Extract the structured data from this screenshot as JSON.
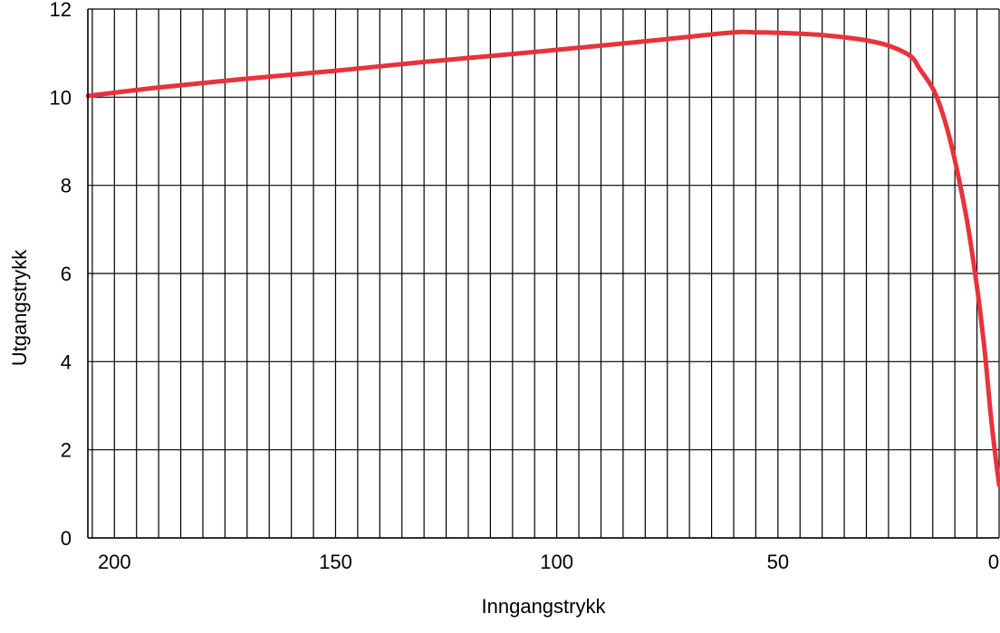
{
  "chart_data": {
    "type": "line",
    "title": "",
    "xlabel": "Inngangstrykk",
    "ylabel": "Utgangstrykk",
    "x_reversed": true,
    "xlim": [
      206,
      0
    ],
    "ylim": [
      0,
      12
    ],
    "x_ticks": [
      200,
      150,
      100,
      50,
      0
    ],
    "x_tick_labels": [
      "200",
      "150",
      "100",
      "50",
      "0"
    ],
    "y_ticks": [
      0,
      2,
      4,
      6,
      8,
      10,
      12
    ],
    "y_tick_labels": [
      "0",
      "2",
      "4",
      "6",
      "8",
      "10",
      "12"
    ],
    "x_grid_step": 5,
    "grid": true,
    "series": [
      {
        "name": "",
        "color": "#e8323c",
        "x": [
          206,
          190,
          170,
          150,
          130,
          110,
          90,
          75,
          60,
          55,
          50,
          45,
          40,
          35,
          30,
          25,
          20,
          18,
          15,
          13,
          11,
          9,
          7,
          5,
          4,
          3,
          2,
          1,
          0
        ],
        "y": [
          10.03,
          10.22,
          10.42,
          10.6,
          10.8,
          10.98,
          11.17,
          11.32,
          11.47,
          11.47,
          11.46,
          11.44,
          11.41,
          11.36,
          11.29,
          11.17,
          10.93,
          10.65,
          10.2,
          9.7,
          9.0,
          8.1,
          7.05,
          5.7,
          4.9,
          4.0,
          2.9,
          2.0,
          1.2
        ]
      }
    ]
  }
}
